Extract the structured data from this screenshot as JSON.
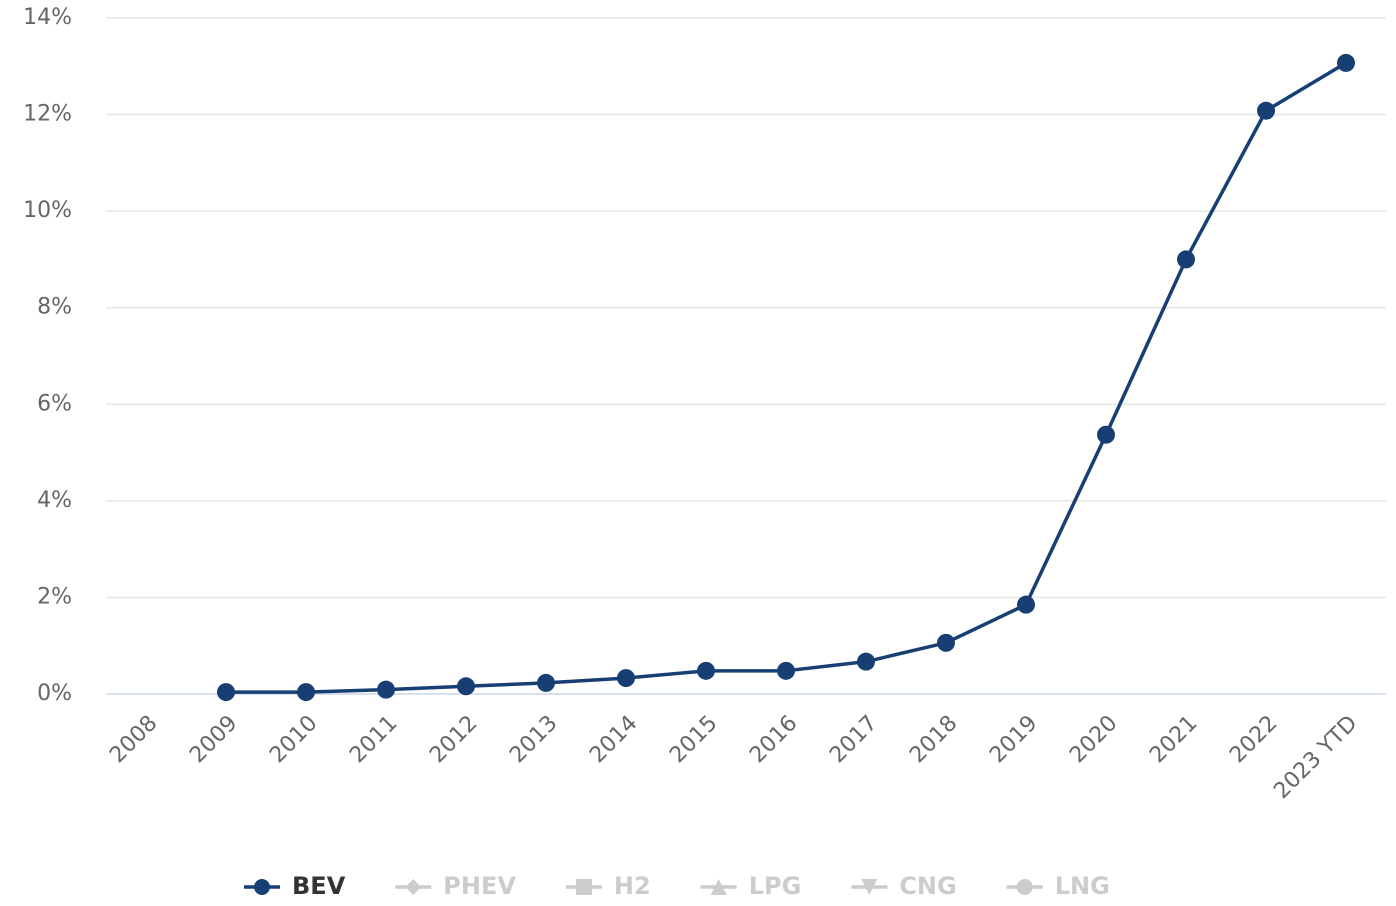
{
  "chart_data": {
    "type": "line",
    "categories": [
      "2008",
      "2009",
      "2010",
      "2011",
      "2012",
      "2013",
      "2014",
      "2015",
      "2016",
      "2017",
      "2018",
      "2019",
      "2020",
      "2021",
      "2022",
      "2023 YTD"
    ],
    "series": [
      {
        "name": "BEV",
        "color": "#173f73",
        "marker": "circle",
        "values": [
          null,
          0.04,
          0.04,
          0.09,
          0.16,
          0.23,
          0.33,
          0.48,
          0.48,
          0.67,
          1.06,
          1.85,
          5.37,
          9.0,
          12.08,
          13.07
        ]
      }
    ],
    "hidden_series": [
      {
        "name": "PHEV",
        "marker": "diamond"
      },
      {
        "name": "H2",
        "marker": "square"
      },
      {
        "name": "LPG",
        "marker": "triangle"
      },
      {
        "name": "CNG",
        "marker": "triangle-down"
      },
      {
        "name": "LNG",
        "marker": "circle"
      }
    ],
    "hidden_color": "#cccccc",
    "ylim": [
      0,
      14
    ],
    "yticks": [
      {
        "value": 0,
        "label": "0%"
      },
      {
        "value": 2,
        "label": "2%"
      },
      {
        "value": 4,
        "label": "4%"
      },
      {
        "value": 6,
        "label": "6%"
      },
      {
        "value": 8,
        "label": "8%"
      },
      {
        "value": 10,
        "label": "10%"
      },
      {
        "value": 12,
        "label": "12%"
      },
      {
        "value": 14,
        "label": "14%"
      }
    ],
    "grid": true,
    "legend": "bottom"
  }
}
